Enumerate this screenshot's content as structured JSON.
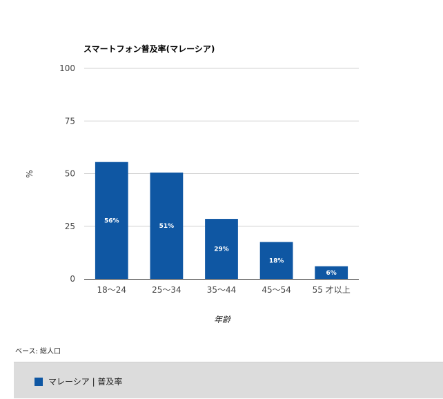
{
  "chart_data": {
    "type": "bar",
    "title": "スマートフォン普及率(マレーシア)",
    "xlabel": "年齢",
    "ylabel": "%",
    "ylim": [
      0,
      100
    ],
    "yticks": [
      0,
      25,
      50,
      75,
      100
    ],
    "grid": true,
    "categories": [
      "18〜24",
      "25〜34",
      "35〜44",
      "45〜54",
      "55 才以上"
    ],
    "series": [
      {
        "name": "マレーシア | 普及率",
        "values": [
          55.5,
          50.5,
          28.5,
          17.5,
          6
        ],
        "labels": [
          "56%",
          "51%",
          "29%",
          "18%",
          "6%"
        ],
        "color": "#0f57a3"
      }
    ],
    "legend_position": "bottom"
  },
  "note": "ベース: 総人口",
  "colors": {
    "bar": "#0f57a3",
    "grid": "#d0d0d0",
    "axis": "#333333",
    "legend_bg": "#dcdcdc"
  }
}
